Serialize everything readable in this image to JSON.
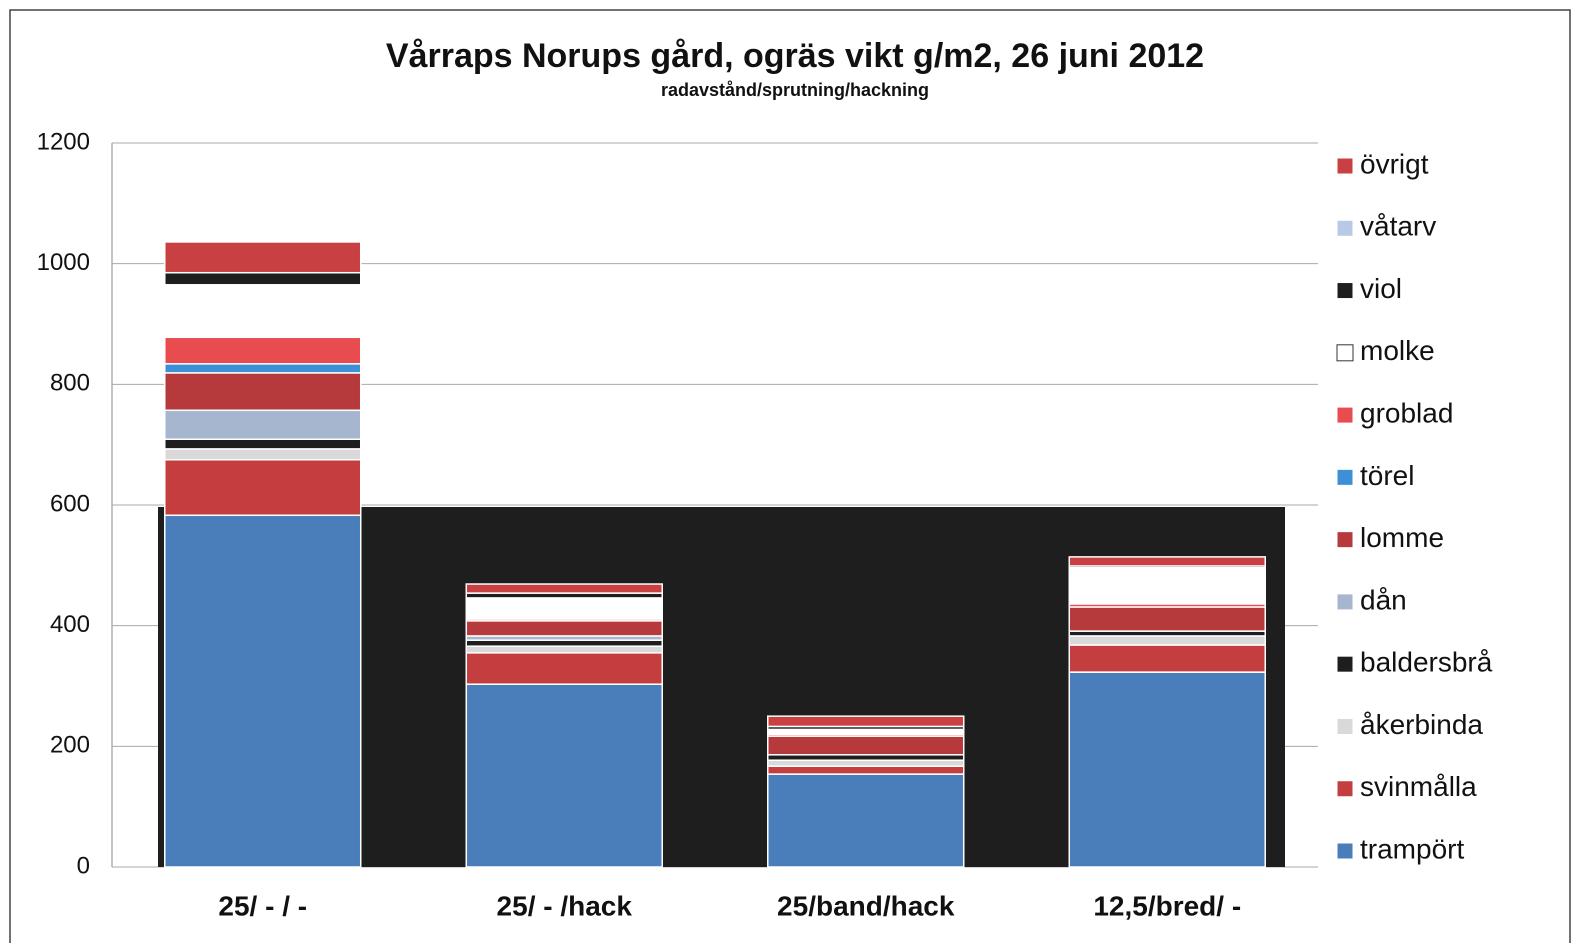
{
  "chart_data": {
    "type": "stacked_bar",
    "title": "Vårraps Norups gård, ogräs vikt g/m2, 26 juni 2012",
    "subtitle": "radavstånd/sprutning/hackning",
    "categories": [
      "25/ - / -",
      "25/ - /hack",
      "25/band/hack",
      "12,5/bred/ -"
    ],
    "series": [
      {
        "name": "trampört",
        "color": "#4a7ebb",
        "values": [
          583,
          303,
          154,
          323
        ]
      },
      {
        "name": "svinmålla",
        "color": "#c43d3f",
        "values": [
          92,
          52,
          13,
          45
        ]
      },
      {
        "name": "åkerbinda",
        "color": "#d9d9d9",
        "values": [
          18,
          11,
          10,
          15
        ]
      },
      {
        "name": "baldersbrå",
        "color": "#1e1e1e",
        "values": [
          16,
          10,
          9,
          8
        ]
      },
      {
        "name": "dån",
        "color": "#a6b6cf",
        "values": [
          48,
          7,
          0,
          0
        ]
      },
      {
        "name": "lomme",
        "color": "#b63a3c",
        "values": [
          62,
          25,
          31,
          40
        ]
      },
      {
        "name": "törel",
        "color": "#3d8fd6",
        "values": [
          15,
          0,
          0,
          0
        ]
      },
      {
        "name": "groblad",
        "color": "#e84c4f",
        "values": [
          44,
          3,
          3,
          5
        ]
      },
      {
        "name": "molke",
        "color": "#ffffff",
        "values": [
          87,
          35,
          8,
          60
        ]
      },
      {
        "name": "viol",
        "color": "#1e1e1e",
        "values": [
          20,
          8,
          5,
          3
        ]
      },
      {
        "name": "våtarv",
        "color": "#b7c9e6",
        "values": [
          0,
          0,
          0,
          0
        ]
      },
      {
        "name": "övrigt",
        "color": "#c94042",
        "values": [
          51,
          15,
          17,
          15
        ]
      }
    ],
    "ylim": [
      0,
      1200
    ],
    "yticks": [
      0,
      200,
      400,
      600,
      800,
      1000,
      1200
    ],
    "grid": true,
    "legend": "right"
  }
}
